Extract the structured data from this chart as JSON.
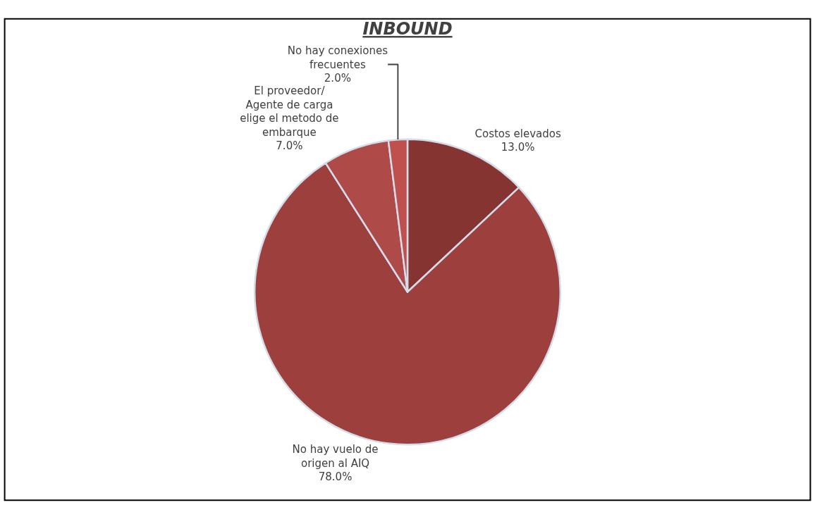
{
  "chart_data": {
    "type": "pie",
    "title": "INBOUND",
    "categories": [
      "Costos elevados",
      "No hay vuelo de\norigen al AIQ",
      "El proveedor/\nAgente de carga\nelige el metodo de\nembarque",
      "No hay conexiones\nfrecuentes"
    ],
    "values": [
      13.0,
      78.0,
      7.0,
      2.0
    ],
    "value_labels": [
      "13.0%",
      "78.0%",
      "7.0%",
      "2.0%"
    ],
    "colors": [
      "#863432",
      "#9c3f3d",
      "#ae4a47",
      "#c0504d"
    ],
    "legend": false
  }
}
